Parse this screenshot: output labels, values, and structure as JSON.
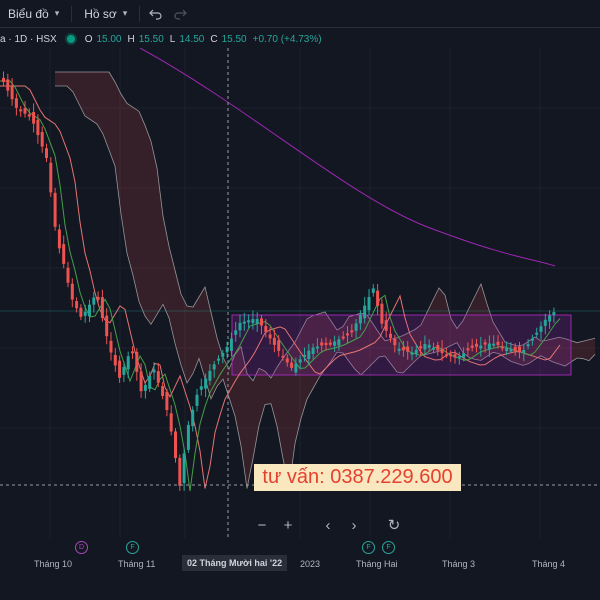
{
  "toolbar": {
    "chart_menu": "Biểu đồ",
    "profile_menu": "Hồ sơ"
  },
  "legend": {
    "symbol": "a · 1D · HSX",
    "open_label": "O",
    "open": "15.00",
    "high_label": "H",
    "high": "15.50",
    "low_label": "L",
    "low": "14.50",
    "close_label": "C",
    "close": "15.50",
    "change": "+0.70 (+4.73%)"
  },
  "watermark": "tư vấn: 0387.229.600",
  "time_axis": {
    "labels": [
      "Tháng 10",
      "Tháng 11",
      "2023",
      "Tháng Hai",
      "Tháng 3",
      "Tháng 4"
    ],
    "crosshair_label": "02 Tháng Mười hai '22"
  },
  "event_markers": [
    "D",
    "F",
    "F",
    "F"
  ],
  "colors": {
    "background": "#131722",
    "up": "#26a69a",
    "down": "#ef5350",
    "ma_long": "#9c27b0",
    "ma_mid": "#e57373",
    "ma_short": "#43a047",
    "cloud_line": "#c8c8c8",
    "box": "#9c27b0"
  },
  "icons": {
    "chart_menu": "chevron-down-icon",
    "undo": "undo-icon",
    "redo": "redo-icon",
    "zoom_out": "minus-icon",
    "zoom_in": "plus-icon",
    "scroll_left": "chevron-left-icon",
    "scroll_right": "chevron-right-icon",
    "reset": "reset-icon"
  }
}
